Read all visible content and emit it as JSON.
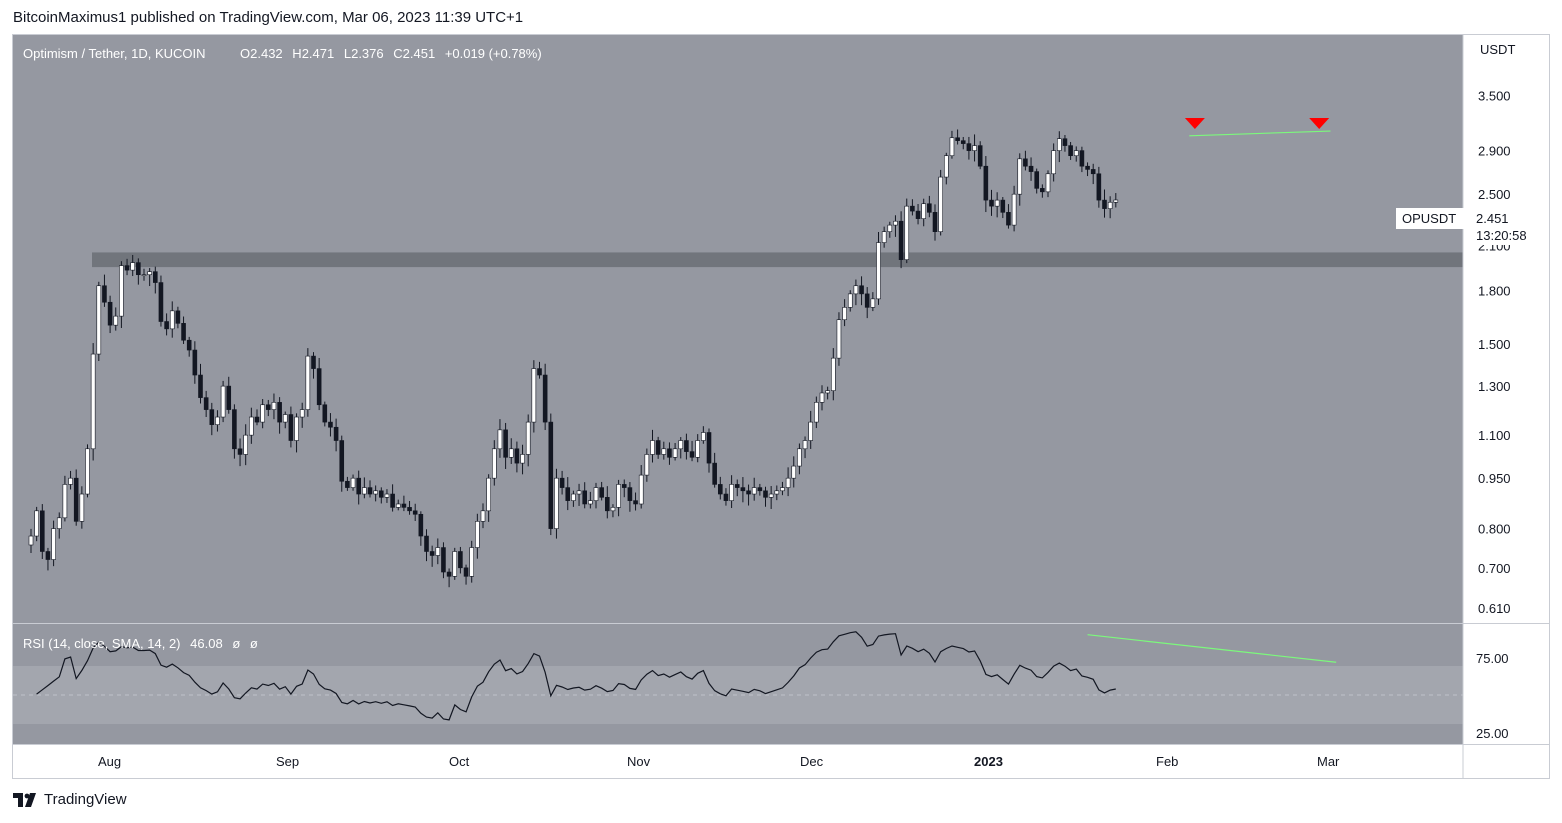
{
  "header": {
    "published_text": "BitcoinMaximus1 published on TradingView.com, Mar 06, 2023 11:39 UTC+1"
  },
  "footer": {
    "brand": "TradingView"
  },
  "colors": {
    "pane_bg": "#9598a1",
    "up_body": "#ffffff",
    "down_body": "#131722",
    "wick": "#131722",
    "support_zone": "#6b6e76",
    "signal": "#ff0000",
    "trendline": "#7cf97c",
    "rsi_line": "#131722",
    "price_tag": "#ffffff"
  },
  "legend": {
    "pair": "Optimism / Tether, 1D, KUCOIN",
    "o_label": "O",
    "o_value": "2.432",
    "h_label": "H",
    "h_value": "2.471",
    "l_label": "L",
    "l_value": "2.376",
    "c_label": "C",
    "c_value": "2.451",
    "change": "+0.019 (+0.78%)"
  },
  "price_axis": {
    "currency": "USDT",
    "ticks": [
      "3.500",
      "2.900",
      "2.500",
      "2.100",
      "1.800",
      "1.500",
      "1.300",
      "1.100",
      "0.950",
      "0.800",
      "0.700",
      "0.610"
    ]
  },
  "price_tag": {
    "symbol": "OPUSDT",
    "value": "2.451",
    "countdown": "13:20:58"
  },
  "rsi": {
    "legend": "RSI (14, close, SMA, 14, 2)",
    "value": "46.08",
    "na1": "ø",
    "na2": "ø",
    "ticks": [
      "75.00",
      "25.00"
    ]
  },
  "time_axis": {
    "labels": [
      "Aug",
      "Sep",
      "Oct",
      "Nov",
      "Dec",
      "2023",
      "Feb",
      "Mar"
    ]
  },
  "chart_data": {
    "type": "candlestick",
    "title": "Optimism / Tether, 1D, KUCOIN",
    "y_scale": "log",
    "ylim": [
      0.58,
      4.3
    ],
    "y_ticks": [
      3.5,
      2.9,
      2.5,
      2.1,
      1.8,
      1.5,
      1.3,
      1.1,
      0.95,
      0.8,
      0.7,
      0.61
    ],
    "x_labels": [
      "Aug",
      "Sep",
      "Oct",
      "Nov",
      "Dec",
      "2023",
      "Feb",
      "Mar"
    ],
    "support_zone": [
      1.95,
      2.05
    ],
    "double_top_markers": [
      "2023-02-02",
      "2023-02-24"
    ],
    "price_trendline": {
      "from": [
        "2023-02-01",
        3.05
      ],
      "to": [
        "2023-02-26",
        3.1
      ]
    },
    "rsi_trendline": {
      "from": [
        "2023-01-14",
        84
      ],
      "to": [
        "2023-02-27",
        65
      ]
    },
    "rsi_ylim": [
      10,
      90
    ],
    "rsi_band": [
      30,
      70
    ],
    "last_close": 2.451,
    "closes": [
      0.78,
      0.85,
      0.74,
      0.72,
      0.8,
      0.83,
      0.93,
      0.95,
      0.82,
      0.9,
      1.05,
      1.45,
      1.83,
      1.73,
      1.6,
      1.65,
      1.96,
      1.93,
      1.98,
      1.9,
      1.9,
      1.92,
      1.85,
      1.62,
      1.58,
      1.68,
      1.61,
      1.52,
      1.47,
      1.35,
      1.25,
      1.2,
      1.14,
      1.17,
      1.3,
      1.2,
      1.05,
      1.03,
      1.1,
      1.17,
      1.15,
      1.22,
      1.2,
      1.23,
      1.15,
      1.18,
      1.08,
      1.17,
      1.2,
      1.44,
      1.38,
      1.22,
      1.15,
      1.13,
      1.08,
      0.94,
      0.92,
      0.95,
      0.9,
      0.92,
      0.9,
      0.91,
      0.89,
      0.9,
      0.86,
      0.87,
      0.86,
      0.85,
      0.84,
      0.78,
      0.74,
      0.73,
      0.75,
      0.69,
      0.68,
      0.74,
      0.7,
      0.68,
      0.75,
      0.82,
      0.85,
      0.95,
      1.05,
      1.12,
      1.02,
      1.05,
      1.0,
      1.03,
      1.15,
      1.38,
      1.35,
      1.15,
      0.8,
      0.95,
      0.92,
      0.88,
      0.9,
      0.91,
      0.87,
      0.88,
      0.92,
      0.89,
      0.85,
      0.86,
      0.93,
      0.92,
      0.88,
      0.87,
      0.96,
      1.03,
      1.08,
      1.03,
      1.05,
      1.02,
      1.05,
      1.08,
      1.04,
      1.02,
      1.08,
      1.11,
      1.0,
      0.93,
      0.9,
      0.88,
      0.93,
      0.92,
      0.91,
      0.9,
      0.92,
      0.91,
      0.89,
      0.9,
      0.91,
      0.92,
      0.95,
      0.99,
      1.05,
      1.08,
      1.15,
      1.23,
      1.27,
      1.28,
      1.43,
      1.63,
      1.7,
      1.78,
      1.83,
      1.78,
      1.7,
      1.75,
      2.12,
      2.2,
      2.25,
      2.28,
      2.0,
      2.4,
      2.36,
      2.3,
      2.42,
      2.35,
      2.2,
      2.65,
      2.85,
      3.03,
      3.0,
      2.97,
      2.9,
      2.95,
      2.75,
      2.45,
      2.4,
      2.45,
      2.35,
      2.25,
      2.5,
      2.82,
      2.75,
      2.7,
      2.55,
      2.52,
      2.68,
      2.9,
      3.02,
      2.95,
      2.85,
      2.9,
      2.75,
      2.72,
      2.68,
      2.45,
      2.38,
      2.432,
      2.451
    ]
  }
}
